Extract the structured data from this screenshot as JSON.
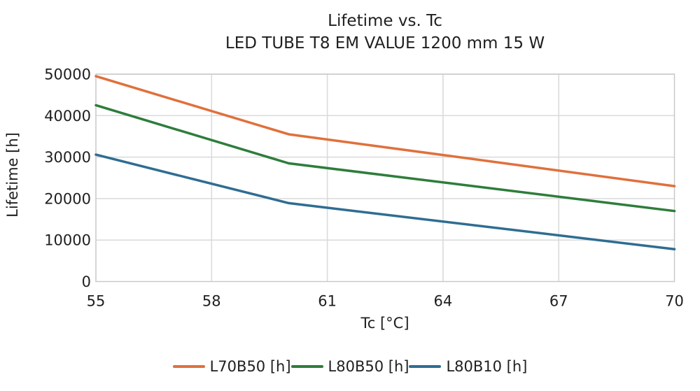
{
  "chart_data": {
    "type": "line",
    "title": "Lifetime vs. Tc",
    "subtitle": "LED TUBE T8 EM VALUE 1200 mm 15 W",
    "xlabel": "Tc [°C]",
    "ylabel": "Lifetime [h]",
    "xlim": [
      55,
      70
    ],
    "ylim": [
      0,
      50000
    ],
    "xticks": [
      55,
      58,
      61,
      64,
      67,
      70
    ],
    "yticks": [
      0,
      10000,
      20000,
      30000,
      40000,
      50000
    ],
    "grid": true,
    "legend_position": "bottom",
    "x": [
      55,
      60,
      70
    ],
    "series": [
      {
        "name": "L70B50 [h]",
        "color": "#e0703c",
        "values": [
          49500,
          35500,
          23000
        ]
      },
      {
        "name": "L80B50 [h]",
        "color": "#2e7d3b",
        "values": [
          42500,
          28500,
          17000
        ]
      },
      {
        "name": "L80B10 [h]",
        "color": "#2f6d92",
        "values": [
          30600,
          18900,
          7800
        ]
      }
    ],
    "colors": {
      "text": "#1f1f1f",
      "grid": "#d9d9d9",
      "border": "#c9c9c9",
      "background": "#ffffff"
    }
  }
}
